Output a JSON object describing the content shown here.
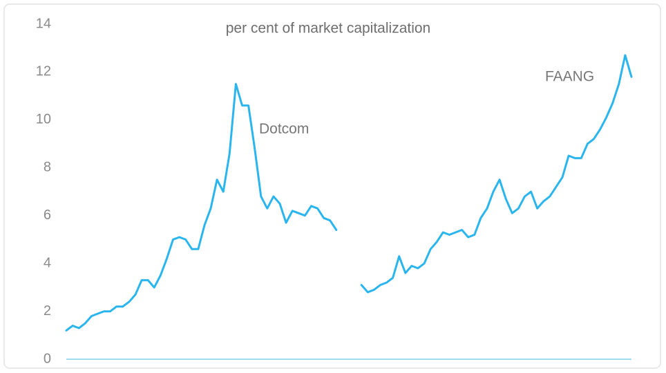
{
  "chart_data": {
    "type": "line",
    "subtitle": "per cent of market capitalization",
    "categories": [
      null,
      null,
      null,
      null,
      null,
      null,
      null,
      null,
      null,
      null,
      null,
      null,
      null,
      null,
      null,
      null,
      null,
      null,
      null,
      null,
      null,
      null,
      null,
      null,
      null,
      null,
      null,
      null,
      null,
      null,
      null,
      null,
      null,
      null,
      null,
      null,
      null,
      null,
      null,
      null,
      null,
      null,
      null,
      null,
      null,
      null,
      null,
      null,
      null,
      null,
      null,
      null,
      null,
      null,
      null,
      null,
      null,
      null,
      null,
      null,
      null,
      null,
      null,
      null,
      null,
      null,
      null,
      null,
      null,
      null,
      null,
      null,
      null,
      null,
      null,
      null,
      null,
      null,
      null,
      null,
      null,
      null,
      null,
      null,
      null,
      null,
      null,
      null,
      null,
      null,
      null
    ],
    "series": [
      {
        "name": "Dotcom",
        "color": "#2bb5ee",
        "values": [
          1.2,
          1.4,
          1.3,
          1.5,
          1.8,
          1.9,
          2.0,
          2.0,
          2.2,
          2.2,
          2.4,
          2.7,
          3.3,
          3.3,
          3.0,
          3.5,
          4.2,
          5.0,
          5.1,
          5.0,
          4.6,
          4.6,
          5.6,
          6.3,
          7.5,
          7.0,
          8.6,
          11.5,
          10.6,
          10.6,
          8.8,
          6.8,
          6.3,
          6.8,
          6.5,
          5.7,
          6.2,
          6.1,
          6.0,
          6.4,
          6.3,
          5.9,
          5.8,
          5.4,
          null,
          null,
          null,
          null,
          null,
          null,
          null,
          null,
          null,
          null,
          null,
          null,
          null,
          null,
          null,
          null,
          null,
          null,
          null,
          null,
          null,
          null,
          null,
          null,
          null,
          null,
          null,
          null,
          null,
          null,
          null,
          null,
          null,
          null,
          null,
          null,
          null,
          null,
          null,
          null,
          null,
          null,
          null,
          null,
          null,
          null,
          null
        ]
      },
      {
        "name": "FAANG",
        "color": "#2bb5ee",
        "values": [
          null,
          null,
          null,
          null,
          null,
          null,
          null,
          null,
          null,
          null,
          null,
          null,
          null,
          null,
          null,
          null,
          null,
          null,
          null,
          null,
          null,
          null,
          null,
          null,
          null,
          null,
          null,
          null,
          null,
          null,
          null,
          null,
          null,
          null,
          null,
          null,
          null,
          null,
          null,
          null,
          null,
          null,
          null,
          null,
          null,
          null,
          null,
          3.1,
          2.8,
          2.9,
          3.1,
          3.2,
          3.4,
          4.3,
          3.6,
          3.9,
          3.8,
          4.0,
          4.6,
          4.9,
          5.3,
          5.2,
          5.3,
          5.4,
          5.1,
          5.2,
          5.9,
          6.3,
          7.0,
          7.5,
          6.7,
          6.1,
          6.3,
          6.8,
          7.0,
          6.3,
          6.6,
          6.8,
          7.2,
          7.6,
          8.5,
          8.4,
          8.4,
          9.0,
          9.2,
          9.6,
          10.1,
          10.7,
          11.5,
          12.7,
          11.8
        ]
      }
    ],
    "ylim": [
      0,
      14
    ],
    "yticks": [
      0,
      2,
      4,
      6,
      8,
      10,
      12,
      14
    ],
    "grid": false
  }
}
